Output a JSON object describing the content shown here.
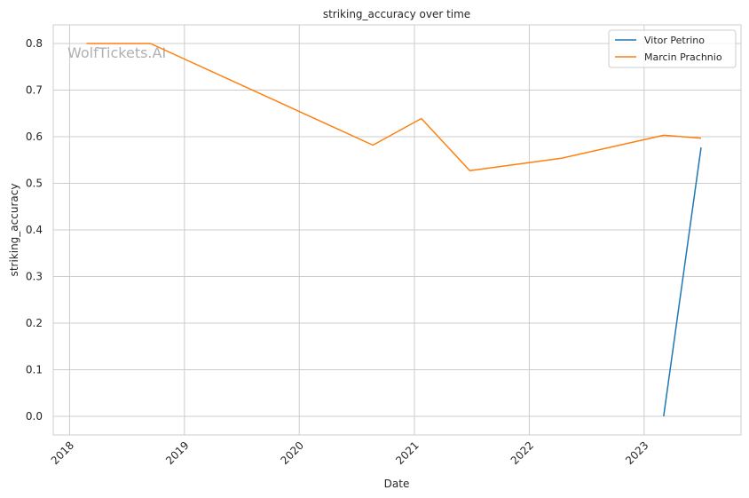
{
  "chart_data": {
    "type": "line",
    "title": "striking_accuracy over time",
    "xlabel": "Date",
    "ylabel": "striking_accuracy",
    "watermark": "WolfTickets.AI",
    "xlim": [
      "2017-11-10",
      "2023-11-05"
    ],
    "ylim": [
      -0.04,
      0.84
    ],
    "x_ticks": [
      "2018-01-01",
      "2019-01-01",
      "2020-01-01",
      "2021-01-01",
      "2022-01-01",
      "2023-01-01"
    ],
    "x_tick_labels": [
      "2018",
      "2019",
      "2020",
      "2021",
      "2022",
      "2023"
    ],
    "y_ticks": [
      0.0,
      0.1,
      0.2,
      0.3,
      0.4,
      0.5,
      0.6,
      0.7,
      0.8
    ],
    "y_tick_labels": [
      "0.0",
      "0.1",
      "0.2",
      "0.3",
      "0.4",
      "0.5",
      "0.6",
      "0.7",
      "0.8"
    ],
    "grid": true,
    "legend_position": "top-right",
    "series": [
      {
        "name": "Vitor Petrino",
        "color": "#1f77b4",
        "x": [
          "2023-03-04",
          "2023-07-01"
        ],
        "y": [
          0.0,
          0.577
        ]
      },
      {
        "name": "Marcin Prachnio",
        "color": "#ff7f0e",
        "x": [
          "2018-02-24",
          "2018-09-15",
          "2020-08-22",
          "2021-01-23",
          "2021-06-26",
          "2022-04-16",
          "2023-03-04",
          "2023-07-01"
        ],
        "y": [
          0.8,
          0.8,
          0.582,
          0.639,
          0.527,
          0.554,
          0.603,
          0.597
        ]
      }
    ]
  }
}
